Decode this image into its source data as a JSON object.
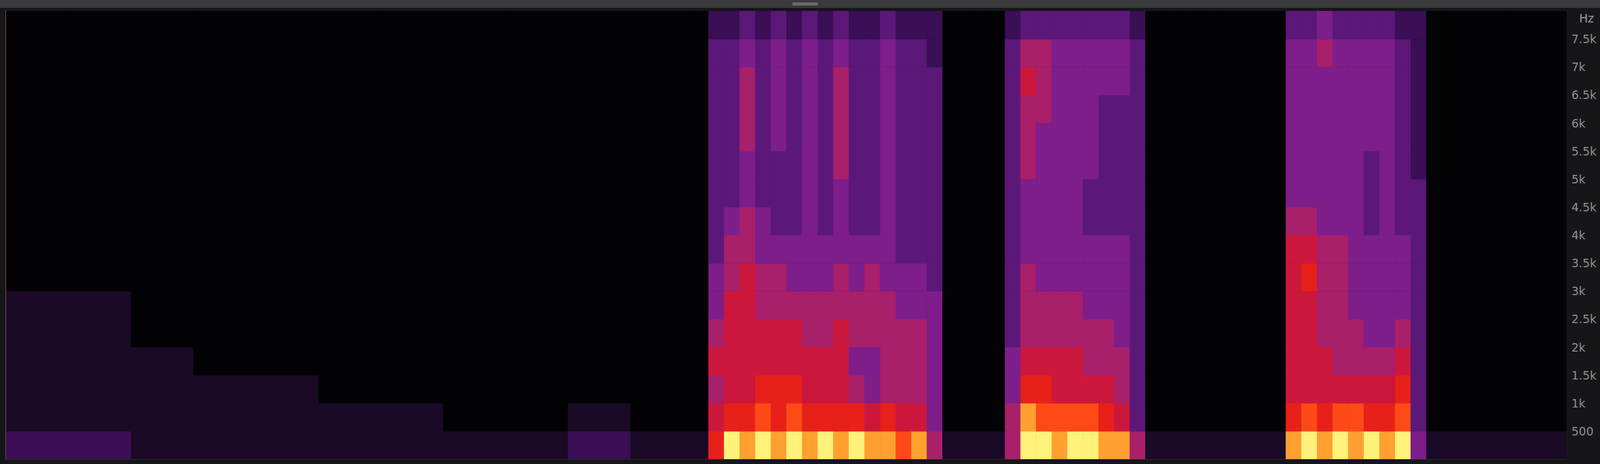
{
  "chart_data": {
    "type": "heatmap",
    "ylabel": "Hz",
    "xlim": [
      0,
      100
    ],
    "ylim": [
      0,
      8000
    ],
    "yticks": [
      500,
      {
        "value": 1000,
        "label": "1k"
      },
      {
        "value": 1500,
        "label": "1.5k"
      },
      {
        "value": 2000,
        "label": "2k"
      },
      {
        "value": 2500,
        "label": "2.5k"
      },
      {
        "value": 3000,
        "label": "3k"
      },
      {
        "value": 3500,
        "label": "3.5k"
      },
      {
        "value": 4000,
        "label": "4k"
      },
      {
        "value": 4500,
        "label": "4.5k"
      },
      {
        "value": 5000,
        "label": "5k"
      },
      {
        "value": 5500,
        "label": "5.5k"
      },
      {
        "value": 6000,
        "label": "6k"
      },
      {
        "value": 6500,
        "label": "6.5k"
      },
      {
        "value": 7000,
        "label": "7k"
      },
      {
        "value": 7500,
        "label": "7.5k"
      }
    ],
    "grid": false,
    "tick_labels": "y",
    "zlim": [
      0,
      10
    ],
    "x_edges": [
      0,
      4,
      8,
      12,
      16,
      20,
      24,
      28,
      32,
      36,
      40,
      44,
      45,
      46,
      47,
      48,
      49,
      50,
      51,
      52,
      53,
      54,
      55,
      56,
      57,
      58,
      59,
      60,
      61,
      62,
      63,
      64,
      65,
      66,
      67,
      68,
      69,
      70,
      71,
      72,
      73,
      74,
      75,
      76,
      77,
      78,
      79,
      80,
      81,
      82,
      83,
      84,
      85,
      86,
      87,
      88,
      89,
      90,
      91,
      92,
      96,
      100
    ],
    "y_edges": [
      0,
      500,
      1000,
      1500,
      2000,
      2500,
      3000,
      3500,
      4000,
      4500,
      5000,
      5500,
      6000,
      6500,
      7000,
      7500,
      8000
    ],
    "cells": [
      [
        2,
        1,
        1,
        1,
        1,
        1,
        0,
        0,
        0,
        0,
        0,
        0,
        0,
        0,
        0,
        0
      ],
      [
        2,
        1,
        1,
        1,
        1,
        1,
        0,
        0,
        0,
        0,
        0,
        0,
        0,
        0,
        0,
        0
      ],
      [
        1,
        1,
        1,
        1,
        0,
        0,
        0,
        0,
        0,
        0,
        0,
        0,
        0,
        0,
        0,
        0
      ],
      [
        1,
        1,
        1,
        0,
        0,
        0,
        0,
        0,
        0,
        0,
        0,
        0,
        0,
        0,
        0,
        0
      ],
      [
        1,
        1,
        1,
        0,
        0,
        0,
        0,
        0,
        0,
        0,
        0,
        0,
        0,
        0,
        0,
        0
      ],
      [
        1,
        1,
        0,
        0,
        0,
        0,
        0,
        0,
        0,
        0,
        0,
        0,
        0,
        0,
        0,
        0
      ],
      [
        1,
        1,
        0,
        0,
        0,
        0,
        0,
        0,
        0,
        0,
        0,
        0,
        0,
        0,
        0,
        0
      ],
      [
        1,
        0,
        0,
        0,
        0,
        0,
        0,
        0,
        0,
        0,
        0,
        0,
        0,
        0,
        0,
        0
      ],
      [
        1,
        0,
        0,
        0,
        0,
        0,
        0,
        0,
        0,
        0,
        0,
        0,
        0,
        0,
        0,
        0
      ],
      [
        2,
        1,
        0,
        0,
        0,
        0,
        0,
        0,
        0,
        0,
        0,
        0,
        0,
        0,
        0,
        0
      ],
      [
        1,
        0,
        0,
        0,
        0,
        0,
        0,
        0,
        0,
        0,
        0,
        0,
        0,
        0,
        0,
        0
      ],
      [
        1,
        0,
        0,
        0,
        0,
        0,
        0,
        0,
        0,
        0,
        0,
        0,
        0,
        0,
        0,
        0
      ],
      [
        7,
        6,
        5,
        6,
        5,
        4,
        4,
        3,
        3,
        3,
        3,
        3,
        3,
        3,
        3,
        2
      ],
      [
        10,
        7,
        6,
        6,
        6,
        6,
        5,
        5,
        4,
        3,
        3,
        3,
        3,
        3,
        3,
        2
      ],
      [
        9,
        7,
        6,
        6,
        6,
        6,
        6,
        5,
        5,
        4,
        4,
        5,
        5,
        5,
        4,
        3
      ],
      [
        10,
        8,
        7,
        6,
        6,
        5,
        5,
        4,
        4,
        3,
        3,
        3,
        3,
        3,
        3,
        2
      ],
      [
        9,
        7,
        7,
        6,
        6,
        5,
        5,
        4,
        3,
        3,
        3,
        4,
        4,
        4,
        4,
        3
      ],
      [
        10,
        8,
        7,
        6,
        6,
        5,
        4,
        4,
        3,
        3,
        3,
        3,
        3,
        3,
        3,
        2
      ],
      [
        9,
        7,
        6,
        6,
        5,
        5,
        4,
        4,
        4,
        4,
        4,
        4,
        4,
        4,
        4,
        3
      ],
      [
        10,
        7,
        6,
        6,
        5,
        5,
        4,
        4,
        3,
        3,
        3,
        3,
        3,
        3,
        3,
        2
      ],
      [
        9,
        7,
        6,
        6,
        6,
        5,
        5,
        4,
        4,
        4,
        5,
        5,
        5,
        5,
        4,
        3
      ],
      [
        10,
        7,
        5,
        4,
        5,
        5,
        4,
        4,
        3,
        3,
        3,
        3,
        3,
        3,
        3,
        2
      ],
      [
        9,
        6,
        4,
        4,
        5,
        5,
        5,
        4,
        3,
        3,
        3,
        3,
        3,
        3,
        3,
        2
      ],
      [
        9,
        7,
        5,
        5,
        5,
        5,
        4,
        4,
        4,
        4,
        4,
        4,
        4,
        4,
        4,
        3
      ],
      [
        8,
        6,
        5,
        5,
        5,
        4,
        4,
        3,
        3,
        3,
        3,
        3,
        3,
        3,
        3,
        2
      ],
      [
        9,
        6,
        5,
        5,
        5,
        4,
        4,
        3,
        3,
        3,
        3,
        3,
        3,
        3,
        3,
        2
      ],
      [
        5,
        4,
        4,
        4,
        4,
        4,
        3,
        3,
        3,
        3,
        3,
        3,
        3,
        3,
        2,
        2
      ],
      [
        1,
        0,
        0,
        0,
        0,
        0,
        0,
        0,
        0,
        0,
        0,
        0,
        0,
        0,
        0,
        0
      ],
      [
        1,
        0,
        0,
        0,
        0,
        0,
        0,
        0,
        0,
        0,
        0,
        0,
        0,
        0,
        0,
        0
      ],
      [
        1,
        0,
        0,
        0,
        0,
        0,
        0,
        0,
        0,
        0,
        0,
        0,
        0,
        0,
        0,
        0
      ],
      [
        1,
        0,
        0,
        0,
        0,
        0,
        0,
        0,
        0,
        0,
        0,
        0,
        0,
        0,
        0,
        0
      ],
      [
        5,
        5,
        4,
        4,
        3,
        3,
        3,
        3,
        3,
        3,
        3,
        3,
        3,
        3,
        3,
        2
      ],
      [
        10,
        9,
        7,
        6,
        5,
        5,
        5,
        4,
        4,
        4,
        5,
        5,
        5,
        6,
        5,
        3
      ],
      [
        10,
        8,
        7,
        6,
        5,
        5,
        4,
        4,
        4,
        4,
        4,
        4,
        5,
        5,
        5,
        3
      ],
      [
        9,
        8,
        6,
        6,
        5,
        5,
        4,
        4,
        4,
        4,
        4,
        4,
        4,
        4,
        4,
        3
      ],
      [
        10,
        8,
        6,
        6,
        5,
        5,
        4,
        4,
        4,
        4,
        4,
        4,
        4,
        4,
        4,
        3
      ],
      [
        10,
        8,
        6,
        5,
        5,
        4,
        4,
        4,
        3,
        3,
        4,
        4,
        4,
        4,
        4,
        3
      ],
      [
        9,
        7,
        6,
        5,
        5,
        4,
        4,
        4,
        3,
        3,
        3,
        3,
        3,
        4,
        4,
        3
      ],
      [
        9,
        6,
        5,
        5,
        4,
        4,
        4,
        4,
        3,
        3,
        3,
        3,
        3,
        4,
        4,
        3
      ],
      [
        5,
        3,
        3,
        3,
        3,
        3,
        3,
        3,
        3,
        3,
        3,
        3,
        3,
        3,
        3,
        2
      ],
      [
        1,
        0,
        0,
        0,
        0,
        0,
        0,
        0,
        0,
        0,
        0,
        0,
        0,
        0,
        0,
        0
      ],
      [
        1,
        0,
        0,
        0,
        0,
        0,
        0,
        0,
        0,
        0,
        0,
        0,
        0,
        0,
        0,
        0
      ],
      [
        1,
        0,
        0,
        0,
        0,
        0,
        0,
        0,
        0,
        0,
        0,
        0,
        0,
        0,
        0,
        0
      ],
      [
        1,
        0,
        0,
        0,
        0,
        0,
        0,
        0,
        0,
        0,
        0,
        0,
        0,
        0,
        0,
        0
      ],
      [
        1,
        0,
        0,
        0,
        0,
        0,
        0,
        0,
        0,
        0,
        0,
        0,
        0,
        0,
        0,
        0
      ],
      [
        1,
        0,
        0,
        0,
        0,
        0,
        0,
        0,
        0,
        0,
        0,
        0,
        0,
        0,
        0,
        0
      ],
      [
        1,
        0,
        0,
        0,
        0,
        0,
        0,
        0,
        0,
        0,
        0,
        0,
        0,
        0,
        0,
        0
      ],
      [
        1,
        0,
        0,
        0,
        0,
        0,
        0,
        0,
        0,
        0,
        0,
        0,
        0,
        0,
        0,
        0
      ],
      [
        1,
        0,
        0,
        0,
        0,
        0,
        0,
        0,
        0,
        0,
        0,
        0,
        0,
        0,
        0,
        0
      ],
      [
        9,
        7,
        6,
        6,
        6,
        6,
        6,
        6,
        5,
        4,
        4,
        4,
        4,
        4,
        4,
        3
      ],
      [
        10,
        8,
        6,
        6,
        6,
        6,
        7,
        6,
        5,
        4,
        4,
        4,
        4,
        4,
        4,
        3
      ],
      [
        9,
        7,
        6,
        6,
        5,
        5,
        5,
        5,
        4,
        4,
        4,
        4,
        4,
        4,
        5,
        4
      ],
      [
        10,
        8,
        6,
        5,
        5,
        5,
        5,
        5,
        4,
        4,
        4,
        4,
        4,
        4,
        4,
        3
      ],
      [
        9,
        8,
        6,
        5,
        5,
        4,
        4,
        4,
        4,
        4,
        4,
        4,
        4,
        4,
        4,
        3
      ],
      [
        10,
        7,
        6,
        5,
        4,
        4,
        4,
        4,
        3,
        3,
        3,
        4,
        4,
        4,
        4,
        3
      ],
      [
        9,
        7,
        6,
        5,
        4,
        4,
        4,
        4,
        4,
        4,
        4,
        4,
        4,
        4,
        4,
        3
      ],
      [
        10,
        8,
        7,
        6,
        5,
        4,
        4,
        4,
        3,
        3,
        3,
        3,
        3,
        3,
        3,
        2
      ],
      [
        4,
        3,
        3,
        3,
        3,
        3,
        3,
        3,
        3,
        3,
        2,
        2,
        2,
        2,
        2,
        2
      ],
      [
        1,
        0,
        0,
        0,
        0,
        0,
        0,
        0,
        0,
        0,
        0,
        0,
        0,
        0,
        0,
        0
      ],
      [
        1,
        0,
        0,
        0,
        0,
        0,
        0,
        0,
        0,
        0,
        0,
        0,
        0,
        0,
        0,
        0
      ],
      [
        1,
        0,
        0,
        0,
        0,
        0,
        0,
        0,
        0,
        0,
        0,
        0,
        0,
        0,
        0,
        0
      ]
    ]
  }
}
